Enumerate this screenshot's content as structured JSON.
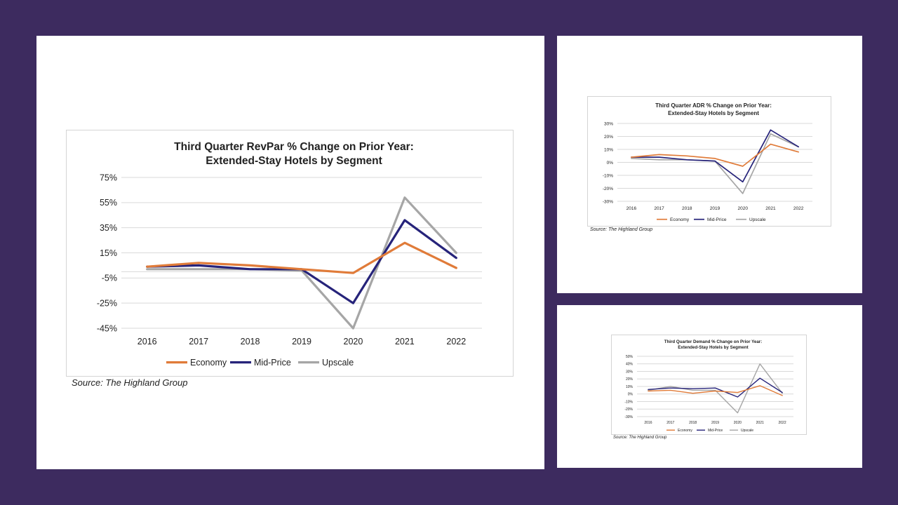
{
  "colors": {
    "background": "#3d2b5f",
    "economy": "#e07b39",
    "mid_price": "#26237a",
    "upscale": "#a6a6a6",
    "grid": "#d9d9d9"
  },
  "chart_data": [
    {
      "type": "line",
      "title_line1": "Third Quarter RevPar % Change on Prior Year:",
      "title_line2": "Extended-Stay Hotels by Segment",
      "categories": [
        "2016",
        "2017",
        "2018",
        "2019",
        "2020",
        "2021",
        "2022"
      ],
      "ylim": [
        -45,
        75
      ],
      "yticks": [
        -45,
        -25,
        -5,
        15,
        35,
        55,
        75
      ],
      "ytick_labels": [
        "-45%",
        "-25%",
        "-5%",
        "15%",
        "35%",
        "55%",
        "75%"
      ],
      "extra_gridlines": [
        0
      ],
      "series": [
        {
          "name": "Economy",
          "key": "economy",
          "values": [
            4,
            7,
            5,
            2,
            -1,
            23,
            3
          ]
        },
        {
          "name": "Mid-Price",
          "key": "mid_price",
          "values": [
            4,
            5,
            2,
            2,
            -25,
            41,
            11
          ]
        },
        {
          "name": "Upscale",
          "key": "upscale",
          "values": [
            2,
            2,
            2,
            1,
            -45,
            59,
            15
          ]
        }
      ],
      "legend": [
        "Economy",
        "Mid-Price",
        "Upscale"
      ],
      "legend_position": "bottom",
      "source": "Source: The Highland Group"
    },
    {
      "type": "line",
      "title_line1": "Third Quarter ADR % Change on Prior Year:",
      "title_line2": "Extended-Stay Hotels by Segment",
      "categories": [
        "2016",
        "2017",
        "2018",
        "2019",
        "2020",
        "2021",
        "2022"
      ],
      "ylim": [
        -30,
        30
      ],
      "yticks": [
        -30,
        -20,
        -10,
        0,
        10,
        20,
        30
      ],
      "ytick_labels": [
        "-30%",
        "-20%",
        "-10%",
        "0%",
        "10%",
        "20%",
        "30%"
      ],
      "extra_gridlines": [],
      "series": [
        {
          "name": "Economy",
          "key": "economy",
          "values": [
            4,
            6,
            5,
            3,
            -3,
            14,
            8
          ]
        },
        {
          "name": "Mid-Price",
          "key": "mid_price",
          "values": [
            4,
            4,
            2,
            1,
            -15,
            25,
            12
          ]
        },
        {
          "name": "Upscale",
          "key": "upscale",
          "values": [
            3,
            2,
            2,
            1,
            -24,
            22,
            12
          ]
        }
      ],
      "legend": [
        "Economy",
        "Mid-Price",
        "Upscale"
      ],
      "legend_position": "bottom",
      "source": "Source: The Highland Group"
    },
    {
      "type": "line",
      "title_line1": "Third Quarter Demand % Change on Prior Year:",
      "title_line2": "Extended-Stay Hotels by Segment",
      "categories": [
        "2016",
        "2017",
        "2018",
        "2019",
        "2020",
        "2021",
        "2022"
      ],
      "ylim": [
        -30,
        50
      ],
      "yticks": [
        -30,
        -20,
        -10,
        0,
        10,
        20,
        30,
        40,
        50
      ],
      "ytick_labels": [
        "-30%",
        "-20%",
        "-10%",
        "0%",
        "10%",
        "20%",
        "30%",
        "40%",
        "50%"
      ],
      "extra_gridlines": [],
      "series": [
        {
          "name": "Economy",
          "key": "economy",
          "values": [
            4,
            5,
            1,
            4,
            2,
            11,
            -2
          ]
        },
        {
          "name": "Mid-Price",
          "key": "mid_price",
          "values": [
            6,
            8,
            7,
            8,
            -4,
            21,
            2
          ]
        },
        {
          "name": "Upscale",
          "key": "upscale",
          "values": [
            5,
            10,
            5,
            5,
            -25,
            40,
            1
          ]
        }
      ],
      "legend": [
        "Economy",
        "Mid-Price",
        "Upscale"
      ],
      "legend_position": "bottom",
      "source": "Source: The Highland Group"
    }
  ]
}
